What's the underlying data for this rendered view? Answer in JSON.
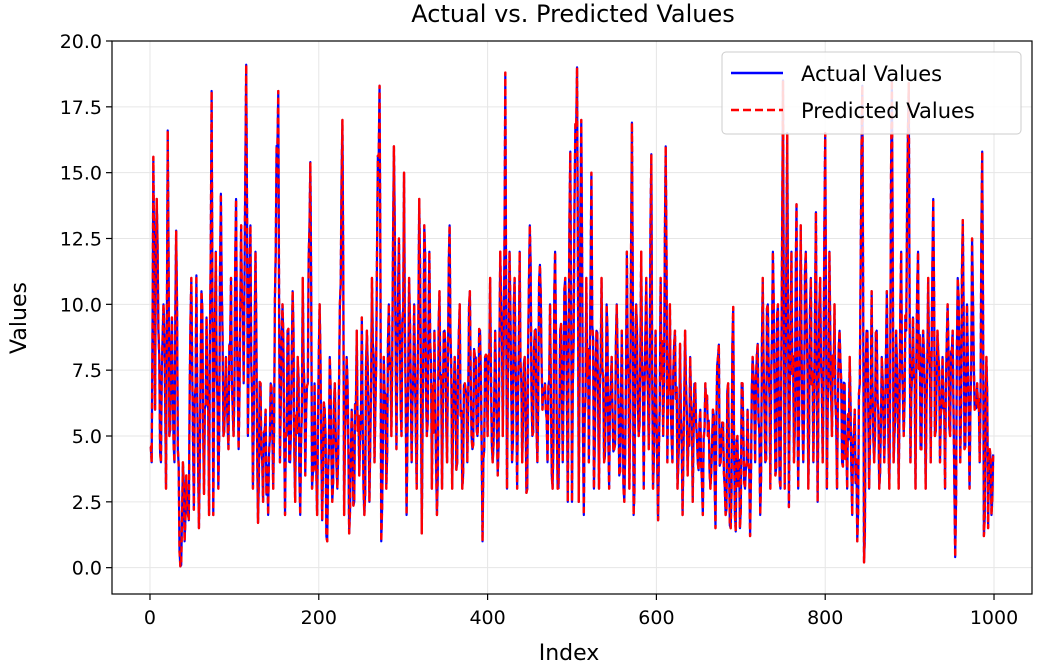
{
  "chart_data": {
    "type": "line",
    "title": "Actual vs. Predicted Values",
    "xlabel": "Index",
    "ylabel": "Values",
    "xlim": [
      -45,
      1045
    ],
    "ylim": [
      -1.0,
      20.0
    ],
    "xticks": [
      0,
      200,
      400,
      600,
      800,
      1000
    ],
    "xtick_labels": [
      "0",
      "200",
      "400",
      "600",
      "800",
      "1000"
    ],
    "yticks": [
      0.0,
      2.5,
      5.0,
      7.5,
      10.0,
      12.5,
      15.0,
      17.5,
      20.0
    ],
    "ytick_labels": [
      "0.0",
      "2.5",
      "5.0",
      "7.5",
      "10.0",
      "12.5",
      "15.0",
      "17.5",
      "20.0"
    ],
    "grid": true,
    "legend_position": "top-right",
    "n_points": 1000,
    "anchors": [
      [
        0,
        4.6
      ],
      [
        2,
        4.0
      ],
      [
        4,
        15.6
      ],
      [
        6,
        6.0
      ],
      [
        8,
        14.0
      ],
      [
        10,
        9.0
      ],
      [
        13,
        4.0
      ],
      [
        16,
        10.0
      ],
      [
        19,
        3.0
      ],
      [
        21,
        16.6
      ],
      [
        23,
        5.0
      ],
      [
        26,
        9.5
      ],
      [
        29,
        4.0
      ],
      [
        31,
        12.8
      ],
      [
        33,
        4.5
      ],
      [
        35,
        0.6
      ],
      [
        37,
        0.1
      ],
      [
        39,
        4.0
      ],
      [
        41,
        1.0
      ],
      [
        43,
        3.5
      ],
      [
        46,
        1.8
      ],
      [
        49,
        11.0
      ],
      [
        52,
        2.2
      ],
      [
        55,
        11.1
      ],
      [
        58,
        1.5
      ],
      [
        61,
        10.5
      ],
      [
        64,
        2.8
      ],
      [
        67,
        9.5
      ],
      [
        70,
        2.0
      ],
      [
        73,
        18.1
      ],
      [
        75,
        2.0
      ],
      [
        78,
        12.0
      ],
      [
        81,
        3.0
      ],
      [
        84,
        14.2
      ],
      [
        87,
        5.0
      ],
      [
        90,
        8.0
      ],
      [
        93,
        4.5
      ],
      [
        96,
        11.0
      ],
      [
        99,
        5.0
      ],
      [
        102,
        14.0
      ],
      [
        105,
        4.5
      ],
      [
        108,
        13.0
      ],
      [
        111,
        7.0
      ],
      [
        114,
        19.1
      ],
      [
        116,
        5.0
      ],
      [
        119,
        13.0
      ],
      [
        122,
        3.0
      ],
      [
        125,
        12.0
      ],
      [
        128,
        1.7
      ],
      [
        131,
        7.0
      ],
      [
        134,
        2.5
      ],
      [
        137,
        6.0
      ],
      [
        140,
        2.0
      ],
      [
        143,
        7.0
      ],
      [
        146,
        3.0
      ],
      [
        149,
        12.0
      ],
      [
        152,
        18.1
      ],
      [
        154,
        4.0
      ],
      [
        157,
        10.0
      ],
      [
        160,
        2.0
      ],
      [
        163,
        9.0
      ],
      [
        166,
        4.0
      ],
      [
        169,
        10.5
      ],
      [
        172,
        2.5
      ],
      [
        175,
        8.0
      ],
      [
        178,
        2.0
      ],
      [
        181,
        11.0
      ],
      [
        184,
        3.5
      ],
      [
        187,
        7.0
      ],
      [
        190,
        15.4
      ],
      [
        192,
        3.0
      ],
      [
        195,
        7.0
      ],
      [
        198,
        2.0
      ],
      [
        201,
        10.0
      ],
      [
        204,
        1.8
      ],
      [
        207,
        6.0
      ],
      [
        210,
        1.0
      ],
      [
        213,
        8.0
      ],
      [
        216,
        2.5
      ],
      [
        219,
        7.0
      ],
      [
        222,
        3.0
      ],
      [
        225,
        10.0
      ],
      [
        228,
        17.0
      ],
      [
        230,
        2.0
      ],
      [
        233,
        8.0
      ],
      [
        236,
        1.3
      ],
      [
        239,
        6.0
      ],
      [
        242,
        2.5
      ],
      [
        245,
        9.0
      ],
      [
        248,
        3.5
      ],
      [
        251,
        9.5
      ],
      [
        254,
        2.0
      ],
      [
        257,
        9.0
      ],
      [
        260,
        2.5
      ],
      [
        263,
        11.0
      ],
      [
        266,
        4.0
      ],
      [
        269,
        12.0
      ],
      [
        272,
        18.3
      ],
      [
        274,
        1.0
      ],
      [
        277,
        8.0
      ],
      [
        280,
        3.0
      ],
      [
        283,
        10.0
      ],
      [
        286,
        5.0
      ],
      [
        289,
        16.0
      ],
      [
        292,
        4.5
      ],
      [
        295,
        12.5
      ],
      [
        298,
        5.0
      ],
      [
        301,
        15.0
      ],
      [
        304,
        2.0
      ],
      [
        307,
        11.0
      ],
      [
        310,
        4.0
      ],
      [
        313,
        10.0
      ],
      [
        316,
        3.0
      ],
      [
        319,
        14.0
      ],
      [
        322,
        1.3
      ],
      [
        325,
        13.0
      ],
      [
        328,
        5.0
      ],
      [
        331,
        12.0
      ],
      [
        334,
        3.0
      ],
      [
        337,
        9.0
      ],
      [
        340,
        2.0
      ],
      [
        343,
        10.5
      ],
      [
        346,
        3.0
      ],
      [
        349,
        9.0
      ],
      [
        352,
        4.0
      ],
      [
        355,
        13.0
      ],
      [
        358,
        3.0
      ],
      [
        361,
        8.0
      ],
      [
        364,
        4.0
      ],
      [
        367,
        10.0
      ],
      [
        370,
        3.0
      ],
      [
        373,
        7.0
      ],
      [
        376,
        4.0
      ],
      [
        379,
        10.5
      ],
      [
        382,
        4.5
      ],
      [
        385,
        8.0
      ],
      [
        388,
        5.0
      ],
      [
        391,
        9.0
      ],
      [
        394,
        1.0
      ],
      [
        397,
        8.0
      ],
      [
        400,
        5.0
      ],
      [
        403,
        11.0
      ],
      [
        406,
        4.0
      ],
      [
        409,
        9.0
      ],
      [
        412,
        3.5
      ],
      [
        415,
        12.0
      ],
      [
        418,
        5.0
      ],
      [
        421,
        18.8
      ],
      [
        423,
        3.0
      ],
      [
        426,
        12.0
      ],
      [
        429,
        4.0
      ],
      [
        432,
        11.0
      ],
      [
        435,
        3.0
      ],
      [
        438,
        12.0
      ],
      [
        441,
        4.0
      ],
      [
        444,
        8.0
      ],
      [
        447,
        3.0
      ],
      [
        450,
        13.0
      ],
      [
        453,
        5.0
      ],
      [
        456,
        9.0
      ],
      [
        459,
        4.0
      ],
      [
        462,
        11.5
      ],
      [
        465,
        6.0
      ],
      [
        468,
        7.0
      ],
      [
        471,
        4.0
      ],
      [
        474,
        10.0
      ],
      [
        477,
        3.0
      ],
      [
        480,
        12.0
      ],
      [
        483,
        3.0
      ],
      [
        486,
        9.0
      ],
      [
        489,
        4.0
      ],
      [
        492,
        11.0
      ],
      [
        495,
        2.5
      ],
      [
        498,
        15.8
      ],
      [
        500,
        2.5
      ],
      [
        503,
        14.0
      ],
      [
        506,
        19.0
      ],
      [
        508,
        2.5
      ],
      [
        511,
        17.0
      ],
      [
        514,
        2.0
      ],
      [
        517,
        11.0
      ],
      [
        520,
        4.0
      ],
      [
        523,
        15.0
      ],
      [
        526,
        3.0
      ],
      [
        529,
        9.0
      ],
      [
        532,
        3.0
      ],
      [
        535,
        11.0
      ],
      [
        538,
        4.0
      ],
      [
        541,
        10.0
      ],
      [
        544,
        3.0
      ],
      [
        547,
        8.0
      ],
      [
        550,
        4.5
      ],
      [
        553,
        10.0
      ],
      [
        556,
        3.5
      ],
      [
        559,
        9.0
      ],
      [
        562,
        2.5
      ],
      [
        565,
        12.0
      ],
      [
        568,
        3.0
      ],
      [
        571,
        16.9
      ],
      [
        573,
        2.0
      ],
      [
        576,
        10.0
      ],
      [
        579,
        5.0
      ],
      [
        582,
        12.0
      ],
      [
        585,
        3.0
      ],
      [
        588,
        11.0
      ],
      [
        591,
        4.5
      ],
      [
        594,
        15.7
      ],
      [
        596,
        3.0
      ],
      [
        599,
        9.0
      ],
      [
        602,
        1.8
      ],
      [
        605,
        11.0
      ],
      [
        608,
        5.0
      ],
      [
        611,
        16.0
      ],
      [
        613,
        4.0
      ],
      [
        616,
        10.0
      ],
      [
        619,
        4.0
      ],
      [
        622,
        9.0
      ],
      [
        625,
        3.0
      ],
      [
        628,
        8.5
      ],
      [
        631,
        2.0
      ],
      [
        634,
        9.0
      ],
      [
        637,
        3.5
      ],
      [
        640,
        8.0
      ],
      [
        643,
        2.5
      ],
      [
        646,
        7.0
      ],
      [
        649,
        4.0
      ],
      [
        652,
        6.0
      ],
      [
        655,
        2.0
      ],
      [
        658,
        7.0
      ],
      [
        661,
        5.0
      ],
      [
        664,
        3.0
      ],
      [
        667,
        6.0
      ],
      [
        670,
        1.5
      ],
      [
        673,
        8.0
      ],
      [
        676,
        4.0
      ],
      [
        679,
        5.5
      ],
      [
        682,
        2.0
      ],
      [
        685,
        7.0
      ],
      [
        688,
        1.5
      ],
      [
        691,
        9.9
      ],
      [
        693,
        2.0
      ],
      [
        696,
        5.0
      ],
      [
        699,
        1.5
      ],
      [
        702,
        7.0
      ],
      [
        705,
        3.0
      ],
      [
        708,
        6.0
      ],
      [
        711,
        1.2
      ],
      [
        714,
        8.0
      ],
      [
        717,
        4.0
      ],
      [
        720,
        8.5
      ],
      [
        723,
        2.0
      ],
      [
        726,
        11.0
      ],
      [
        729,
        4.0
      ],
      [
        732,
        10.0
      ],
      [
        735,
        3.0
      ],
      [
        738,
        12.0
      ],
      [
        741,
        3.5
      ],
      [
        744,
        10.0
      ],
      [
        747,
        3.0
      ],
      [
        750,
        18.5
      ],
      [
        752,
        3.0
      ],
      [
        755,
        16.5
      ],
      [
        757,
        2.3
      ],
      [
        760,
        12.0
      ],
      [
        763,
        4.0
      ],
      [
        766,
        13.8
      ],
      [
        768,
        3.0
      ],
      [
        771,
        13.0
      ],
      [
        774,
        4.0
      ],
      [
        777,
        12.0
      ],
      [
        780,
        3.0
      ],
      [
        783,
        11.0
      ],
      [
        786,
        4.0
      ],
      [
        789,
        13.5
      ],
      [
        791,
        2.5
      ],
      [
        794,
        11.0
      ],
      [
        797,
        4.0
      ],
      [
        800,
        16.5
      ],
      [
        802,
        3.0
      ],
      [
        805,
        12.0
      ],
      [
        808,
        5.0
      ],
      [
        811,
        10.0
      ],
      [
        814,
        3.0
      ],
      [
        817,
        9.0
      ],
      [
        820,
        4.0
      ],
      [
        823,
        7.0
      ],
      [
        826,
        3.0
      ],
      [
        829,
        8.0
      ],
      [
        832,
        2.0
      ],
      [
        835,
        6.0
      ],
      [
        838,
        1.0
      ],
      [
        841,
        7.0
      ],
      [
        844,
        18.3
      ],
      [
        846,
        0.2
      ],
      [
        849,
        9.0
      ],
      [
        852,
        3.0
      ],
      [
        855,
        10.5
      ],
      [
        858,
        4.0
      ],
      [
        861,
        9.0
      ],
      [
        864,
        3.0
      ],
      [
        867,
        8.0
      ],
      [
        870,
        4.0
      ],
      [
        873,
        10.5
      ],
      [
        876,
        3.0
      ],
      [
        879,
        18.5
      ],
      [
        881,
        4.0
      ],
      [
        884,
        9.0
      ],
      [
        887,
        3.0
      ],
      [
        890,
        12.0
      ],
      [
        893,
        5.0
      ],
      [
        896,
        9.0
      ],
      [
        899,
        18.4
      ],
      [
        901,
        4.0
      ],
      [
        904,
        9.5
      ],
      [
        907,
        3.0
      ],
      [
        910,
        12.0
      ],
      [
        913,
        4.5
      ],
      [
        916,
        9.0
      ],
      [
        919,
        3.0
      ],
      [
        922,
        11.0
      ],
      [
        925,
        4.0
      ],
      [
        928,
        14.0
      ],
      [
        930,
        5.0
      ],
      [
        933,
        9.0
      ],
      [
        936,
        4.0
      ],
      [
        939,
        8.0
      ],
      [
        942,
        3.0
      ],
      [
        945,
        10.0
      ],
      [
        948,
        5.0
      ],
      [
        951,
        9.0
      ],
      [
        954,
        0.4
      ],
      [
        957,
        11.0
      ],
      [
        960,
        4.0
      ],
      [
        963,
        13.2
      ],
      [
        965,
        4.5
      ],
      [
        968,
        10.0
      ],
      [
        971,
        3.0
      ],
      [
        974,
        12.5
      ],
      [
        977,
        6.0
      ],
      [
        980,
        7.0
      ],
      [
        983,
        4.0
      ],
      [
        986,
        15.8
      ],
      [
        988,
        1.2
      ],
      [
        991,
        8.0
      ],
      [
        993,
        1.5
      ],
      [
        995,
        4.5
      ],
      [
        997,
        2.0
      ],
      [
        999,
        4.3
      ]
    ],
    "series": [
      {
        "name": "Actual Values",
        "color": "#0000ff",
        "style": "solid"
      },
      {
        "name": "Predicted Values",
        "color": "#ff0000",
        "style": "dashed"
      }
    ]
  }
}
